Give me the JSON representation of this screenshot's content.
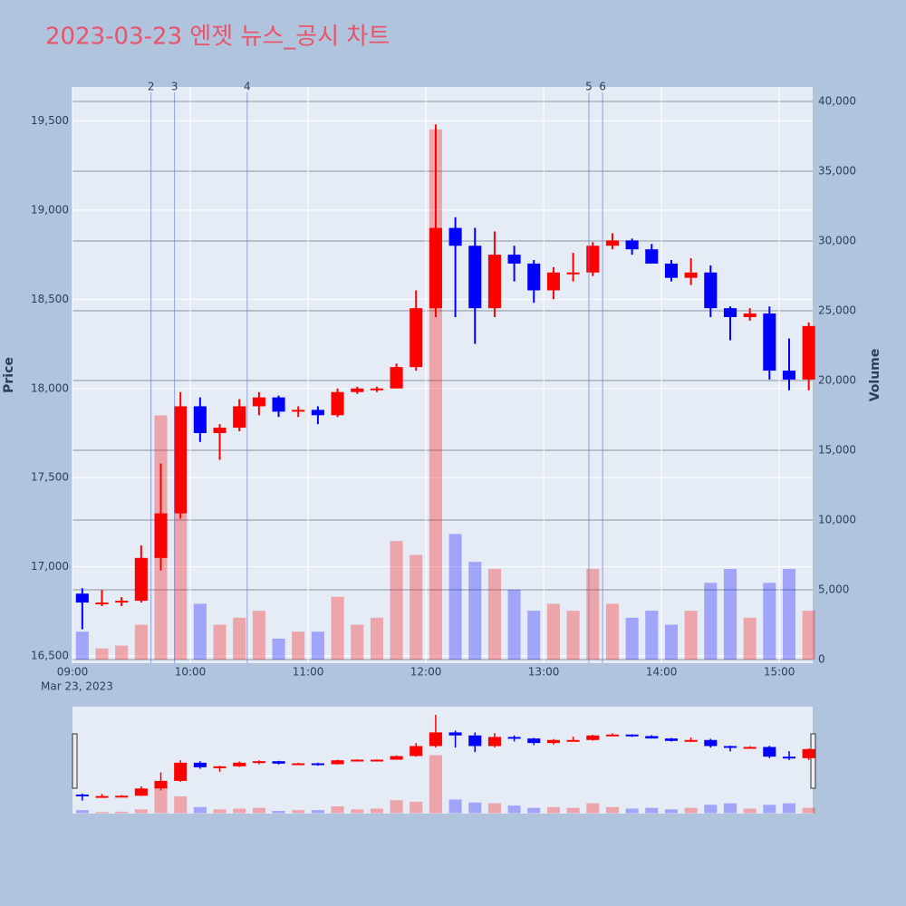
{
  "chart_data": {
    "type": "candlestick",
    "title": "2023-03-23 엔젯 뉴스_공시 차트",
    "y_label": "Price",
    "y2_label": "Volume",
    "x_sublabel": "Mar 23, 2023",
    "up_color": "#ff0000",
    "down_color": "#0000ff",
    "x": [
      "09:00",
      "09:10",
      "09:20",
      "09:30",
      "09:40",
      "09:50",
      "10:00",
      "10:10",
      "10:20",
      "10:30",
      "10:40",
      "10:50",
      "11:00",
      "11:10",
      "11:20",
      "11:30",
      "11:40",
      "11:50",
      "12:00",
      "12:10",
      "12:20",
      "12:30",
      "12:40",
      "12:50",
      "13:00",
      "13:10",
      "13:20",
      "13:30",
      "13:40",
      "13:50",
      "14:00",
      "14:10",
      "14:20",
      "14:30",
      "14:40",
      "14:50",
      "15:00",
      "15:10"
    ],
    "open": [
      16850,
      16800,
      16800,
      16810,
      17050,
      17300,
      17900,
      17750,
      17780,
      17900,
      17950,
      17870,
      17880,
      17850,
      17980,
      18000,
      18000,
      18120,
      18450,
      18900,
      18800,
      18450,
      18750,
      18700,
      18550,
      18650,
      18650,
      18800,
      18830,
      18780,
      18700,
      18620,
      18650,
      18450,
      18400,
      18420,
      18100,
      18050
    ],
    "high": [
      16880,
      16870,
      16830,
      17120,
      17580,
      17980,
      17950,
      17800,
      17940,
      17980,
      17960,
      17900,
      17900,
      18000,
      18010,
      18010,
      18140,
      18550,
      19480,
      18960,
      18900,
      18880,
      18800,
      18720,
      18680,
      18760,
      18820,
      18870,
      18840,
      18810,
      18720,
      18730,
      18690,
      18460,
      18450,
      18460,
      18280,
      18370
    ],
    "low": [
      16650,
      16780,
      16780,
      16800,
      16980,
      17270,
      17700,
      17600,
      17760,
      17850,
      17840,
      17840,
      17800,
      17840,
      17970,
      17980,
      18000,
      18100,
      18400,
      18400,
      18250,
      18400,
      18600,
      18480,
      18500,
      18600,
      18630,
      18780,
      18750,
      18700,
      18600,
      18580,
      18400,
      18270,
      18380,
      18050,
      17990,
      17990
    ],
    "close": [
      16800,
      16800,
      16810,
      17050,
      17300,
      17900,
      17750,
      17780,
      17900,
      17950,
      17870,
      17880,
      17850,
      17980,
      18000,
      18000,
      18120,
      18450,
      18900,
      18800,
      18450,
      18750,
      18700,
      18550,
      18650,
      18650,
      18800,
      18830,
      18780,
      18700,
      18620,
      18650,
      18450,
      18400,
      18420,
      18100,
      18050,
      18350
    ],
    "volume": [
      2000,
      800,
      1000,
      2500,
      17500,
      11000,
      4000,
      2500,
      3000,
      3500,
      1500,
      2000,
      2000,
      4500,
      2500,
      3000,
      8500,
      7500,
      38000,
      9000,
      7000,
      6500,
      5000,
      3500,
      4000,
      3500,
      6500,
      4000,
      3000,
      3500,
      2500,
      3500,
      5500,
      6500,
      3000,
      5500,
      6500,
      3500
    ],
    "events": [
      {
        "label": "2",
        "x": "09:40"
      },
      {
        "label": "3",
        "x": "09:52"
      },
      {
        "label": "4",
        "x": "10:29"
      },
      {
        "label": "5",
        "x": "13:23"
      },
      {
        "label": "6",
        "x": "13:30"
      }
    ],
    "xlim": [
      "09:00",
      "15:17"
    ],
    "xticks": [
      "09:00",
      "10:00",
      "11:00",
      "12:00",
      "13:00",
      "14:00",
      "15:00"
    ],
    "ylim": [
      16460,
      19690
    ],
    "yticks": [
      {
        "value": 16500,
        "label": "16,500"
      },
      {
        "value": 17000,
        "label": "17,000"
      },
      {
        "value": 17500,
        "label": "17,500"
      },
      {
        "value": 18000,
        "label": "18,000"
      },
      {
        "value": 18500,
        "label": "18,500"
      },
      {
        "value": 19000,
        "label": "19,000"
      },
      {
        "value": 19500,
        "label": "19,500"
      }
    ],
    "y2lim": [
      -260,
      41040
    ],
    "y2ticks": [
      0,
      {
        "value": 5000,
        "label": "5,000"
      },
      {
        "value": 10000,
        "label": "10,000"
      },
      {
        "value": 15000,
        "label": "15,000"
      },
      {
        "value": 20000,
        "label": "20,000"
      },
      {
        "value": 25000,
        "label": "25,000"
      },
      {
        "value": 30000,
        "label": "30,000"
      },
      {
        "value": 35000,
        "label": "35,000"
      },
      {
        "value": 40000,
        "label": "40,000"
      }
    ]
  }
}
